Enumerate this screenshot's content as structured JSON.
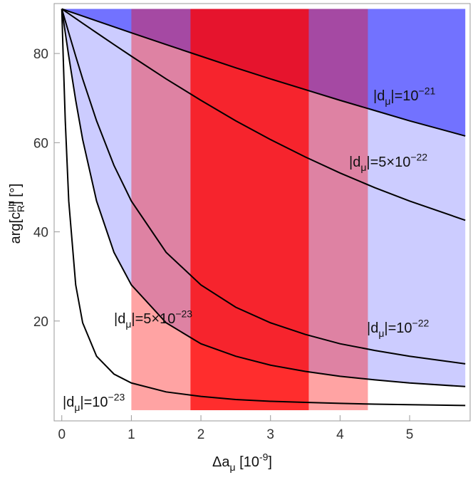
{
  "chart_data": {
    "type": "line",
    "x_label": [
      {
        "text": "Δa"
      },
      {
        "text": "μ",
        "shift": "sub"
      },
      {
        "text": " [10"
      },
      {
        "text": "-9",
        "shift": "sup"
      },
      {
        "text": "]"
      }
    ],
    "y_label": [
      {
        "text": "arg[c"
      },
      {
        "text": "μμ",
        "shift": "sup"
      },
      {
        "text": "R",
        "shift": "sub"
      },
      {
        "text": "] [°]"
      }
    ],
    "x": [
      0,
      0.02,
      0.05,
      0.1,
      0.2,
      0.3,
      0.5,
      0.75,
      1,
      1.5,
      2,
      2.5,
      3,
      3.5,
      4,
      4.5,
      5,
      5.8
    ],
    "series": [
      {
        "color": "#000000",
        "fill_above": "rgba(0,0,255,0.44)",
        "label": [
          {
            "text": "|d"
          },
          {
            "text": "μ",
            "shift": "sub"
          },
          {
            "text": "|=10"
          },
          {
            "text": "−21",
            "shift": "sup"
          }
        ],
        "values": [
          90,
          89.89,
          89.73,
          89.46,
          88.93,
          88.39,
          87.32,
          85.98,
          84.65,
          82.0,
          79.4,
          76.8,
          74.3,
          71.9,
          69.5,
          67.2,
          64.9,
          61.5
        ]
      },
      {
        "color": "#000000",
        "label": [
          {
            "text": "|d"
          },
          {
            "text": "μ",
            "shift": "sub"
          },
          {
            "text": "|=5×10"
          },
          {
            "text": "−22",
            "shift": "sup"
          }
        ],
        "values": [
          90,
          89.79,
          89.46,
          88.93,
          87.86,
          86.78,
          84.65,
          82.0,
          79.4,
          74.3,
          69.5,
          64.9,
          60.7,
          56.8,
          53.2,
          49.9,
          46.9,
          42.6
        ]
      },
      {
        "color": "#000000",
        "label": [
          {
            "text": "|d"
          },
          {
            "text": "μ",
            "shift": "sub"
          },
          {
            "text": "|=10"
          },
          {
            "text": "−22",
            "shift": "sup"
          }
        ],
        "values": [
          90,
          88.93,
          87.32,
          84.65,
          79.4,
          74.3,
          64.9,
          54.9,
          46.9,
          35.4,
          28.1,
          23.1,
          19.6,
          17.0,
          14.9,
          13.4,
          12.1,
          10.4
        ]
      },
      {
        "color": "#000000",
        "fill_above": "rgba(0,0,255,0.2)",
        "label": [
          {
            "text": "|d"
          },
          {
            "text": "μ",
            "shift": "sub"
          },
          {
            "text": "|=5×10"
          },
          {
            "text": "−23",
            "shift": "sup"
          }
        ],
        "values": [
          90,
          87.86,
          84.65,
          79.4,
          69.5,
          60.7,
          46.9,
          35.4,
          28.1,
          19.6,
          14.9,
          12.1,
          10.1,
          8.7,
          7.6,
          6.8,
          6.1,
          5.3
        ]
      },
      {
        "color": "#000000",
        "label": [
          {
            "text": "|d"
          },
          {
            "text": "μ",
            "shift": "sub"
          },
          {
            "text": "|=10"
          },
          {
            "text": "−23",
            "shift": "sup"
          }
        ],
        "values": [
          90,
          79.4,
          64.9,
          46.9,
          28.1,
          19.6,
          12.1,
          8.1,
          6.1,
          4.1,
          3.1,
          2.4,
          2.0,
          1.75,
          1.53,
          1.36,
          1.23,
          1.06
        ]
      }
    ],
    "bands": [
      {
        "xrange": [
          1.0,
          4.4
        ],
        "color": "rgba(255,0,0,0.36)"
      },
      {
        "xrange": [
          1.85,
          3.55
        ],
        "color": "rgba(255,0,0,0.72)"
      }
    ],
    "shade_ylim": [
      0,
      90
    ],
    "xlim": [
      -0.11,
      5.87
    ],
    "ylim": [
      -2.4,
      91.2
    ],
    "xticks": [
      0,
      1,
      2,
      3,
      4,
      5
    ],
    "yticks": [
      20,
      40,
      60,
      80
    ],
    "grid": false
  }
}
